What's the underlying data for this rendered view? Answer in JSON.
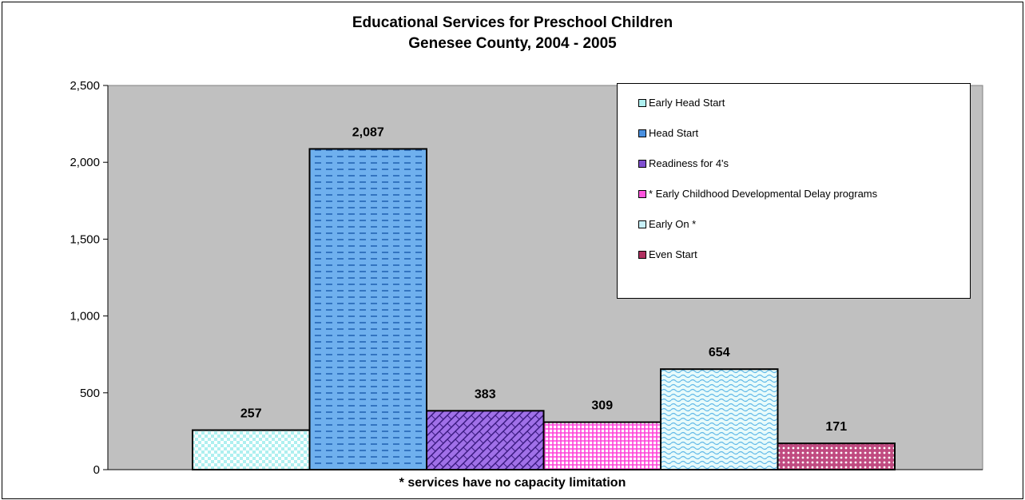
{
  "chart_data": {
    "type": "bar",
    "title": "Educational Services for Preschool Children",
    "subtitle": "Genesee County, 2004 - 2005",
    "xlabel": "* services have no capacity limitation",
    "ylabel": "",
    "ylim": [
      0,
      2500
    ],
    "yticks": [
      0,
      500,
      1000,
      1500,
      2000,
      2500
    ],
    "ytick_labels": [
      "0",
      "500",
      "1,000",
      "1,500",
      "2,000",
      "2,500"
    ],
    "grid": false,
    "legend_position": "top-right",
    "series": [
      {
        "name": "Early Head Start",
        "value": 257,
        "label": "257",
        "color": "#d9f7f7",
        "pattern": "checker"
      },
      {
        "name": "Head Start",
        "value": 2087,
        "label": "2,087",
        "color": "#6fb0ee",
        "pattern": "dashes"
      },
      {
        "name": "Readiness for 4's",
        "value": 383,
        "label": "383",
        "color": "#a070e8",
        "pattern": "brick"
      },
      {
        "name": "* Early Childhood Developmental Delay programs",
        "value": 309,
        "label": "309",
        "color": "#ff55dd",
        "pattern": "weave"
      },
      {
        "name": "Early On *",
        "value": 654,
        "label": "654",
        "color": "#d9f7f7",
        "pattern": "waves"
      },
      {
        "name": "Even Start",
        "value": 171,
        "label": "171",
        "color": "#b04070",
        "pattern": "dots"
      }
    ],
    "plot_background": "#c0c0c0"
  }
}
